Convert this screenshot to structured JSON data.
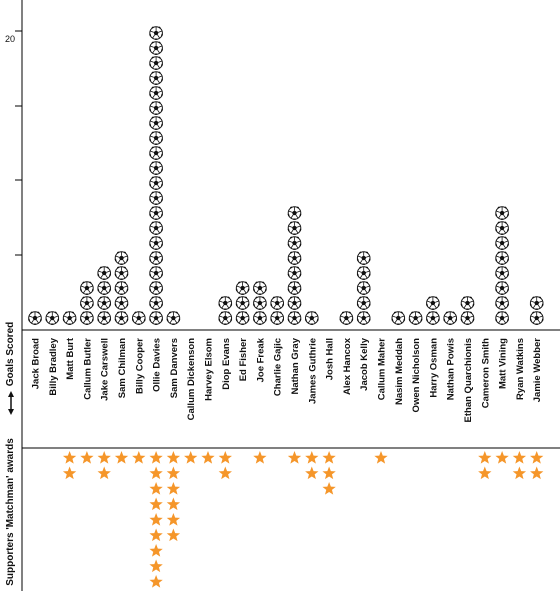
{
  "chart_data": {
    "type": "pictogram",
    "categories": [
      "Jack Broad",
      "Billy Bradley",
      "Matt Burt",
      "Callum Butler",
      "Jake Carswell",
      "Sam Chilman",
      "Billy Cooper",
      "Ollie Davies",
      "Sam Danvers",
      "Callum Dickenson",
      "Harvey Elsom",
      "Diop Evans",
      "Ed Fisher",
      "Joe Freak",
      "Charlie Gajic",
      "Nathan Gray",
      "James Guthrie",
      "Josh Hall",
      "Alex Hancox",
      "Jacob Kelly",
      "Callum Maher",
      "Nasim Meddah",
      "Owen Nicholson",
      "Harry Osman",
      "Nathan Powis",
      "Ethan Quarchionis",
      "Cameron Smith",
      "Matt Vining",
      "Ryan Watkins",
      "Jamie Webber"
    ],
    "series": [
      {
        "name": "Goals Scored",
        "values": [
          1,
          1,
          1,
          3,
          4,
          5,
          1,
          20,
          1,
          0,
          0,
          2,
          3,
          3,
          2,
          8,
          1,
          0,
          1,
          5,
          0,
          1,
          1,
          2,
          1,
          2,
          0,
          8,
          0,
          2
        ]
      },
      {
        "name": "Supporters 'Matchman' awards",
        "values": [
          0,
          0,
          2,
          1,
          2,
          1,
          1,
          9,
          6,
          1,
          1,
          2,
          0,
          1,
          0,
          1,
          2,
          3,
          0,
          0,
          1,
          0,
          0,
          0,
          0,
          0,
          2,
          1,
          2,
          2
        ]
      }
    ],
    "ylabel_top": "Goals Scored",
    "ylabel_bottom": "Supporters 'Matchman' awards",
    "yticks": [
      20
    ],
    "ylim": [
      0,
      20
    ]
  },
  "colors": {
    "ball": "#111111",
    "star": "#F5962A",
    "axis": "#000000"
  },
  "icons": {
    "goal": "football-icon",
    "award": "star-icon"
  }
}
